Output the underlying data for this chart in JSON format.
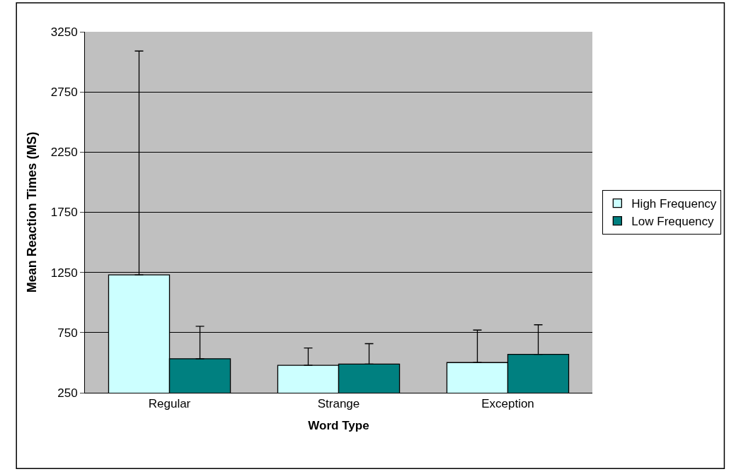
{
  "chart_data": {
    "type": "bar",
    "xlabel": "Word Type",
    "ylabel": "Mean Reaction Times (MS)",
    "categories": [
      "Regular",
      "Strange",
      "Exception"
    ],
    "series": [
      {
        "name": "High Frequency",
        "color": "#ccffff",
        "values": [
          1230,
          478,
          501
        ],
        "errors": [
          [
            1230,
            3090
          ],
          [
            478,
            622
          ],
          [
            501,
            771
          ]
        ]
      },
      {
        "name": "Low Frequency",
        "color": "#008080",
        "values": [
          533,
          488,
          569
        ],
        "errors": [
          [
            533,
            803
          ],
          [
            488,
            658
          ],
          [
            569,
            815
          ]
        ]
      }
    ],
    "ylim": [
      250,
      3250
    ],
    "yticks": [
      250,
      750,
      1250,
      1750,
      2250,
      2750,
      3250
    ],
    "grid": "y",
    "legend": "right"
  }
}
